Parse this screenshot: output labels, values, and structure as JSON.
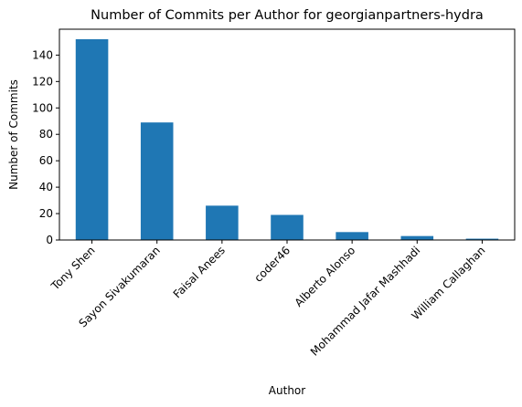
{
  "chart_data": {
    "type": "bar",
    "title": "Number of Commits per Author for georgianpartners-hydra",
    "xlabel": "Author",
    "ylabel": "Number of Commits",
    "categories": [
      "Tony Shen",
      "Sayon Sivakumaran",
      "Faisal Anees",
      "coder46",
      "Alberto Alonso",
      "Mohammad Jafar Mashhadi",
      "William Callaghan"
    ],
    "values": [
      152,
      89,
      26,
      19,
      6,
      3,
      1
    ],
    "ylim": [
      0,
      159.6
    ],
    "yticks": [
      0,
      20,
      40,
      60,
      80,
      100,
      120,
      140
    ],
    "grid": false,
    "bar_color": "#1f77b4"
  }
}
